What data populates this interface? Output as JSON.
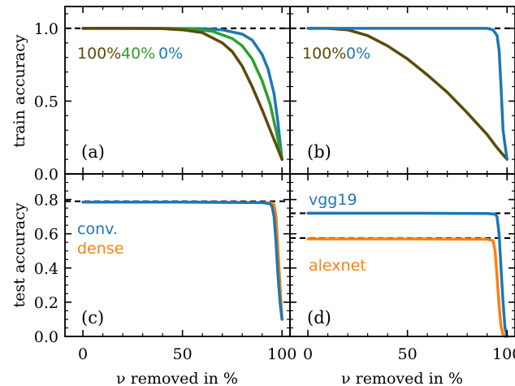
{
  "chart_data": [
    {
      "panel": "(a)",
      "type": "line",
      "ylabel": "train accuracy",
      "xlabel": "",
      "xlim": [
        -9,
        104
      ],
      "ylim": [
        0.0,
        1.15
      ],
      "yticks": [
        0.0,
        0.5,
        1.0
      ],
      "yticklabels": [
        "0.0",
        "0.5",
        "1.0"
      ],
      "reference_lines": [
        1.0
      ],
      "annotations": [
        {
          "text": "100%",
          "color": "#5c4a0a"
        },
        {
          "text": "40%",
          "color": "#2ca02c"
        },
        {
          "text": "0%",
          "color": "#1f77b4"
        }
      ],
      "series": [
        {
          "color": "#1f77b4",
          "x": [
            0,
            20,
            40,
            60,
            70,
            80,
            85,
            90,
            93,
            96,
            98,
            99,
            100
          ],
          "y": [
            1.0,
            1.0,
            1.0,
            0.998,
            0.99,
            0.96,
            0.92,
            0.82,
            0.72,
            0.55,
            0.35,
            0.22,
            0.1
          ]
        },
        {
          "color": "#2ca02c",
          "x": [
            0,
            20,
            40,
            55,
            65,
            75,
            80,
            85,
            90,
            94,
            97,
            100
          ],
          "y": [
            1.0,
            1.0,
            0.999,
            0.995,
            0.98,
            0.93,
            0.88,
            0.79,
            0.64,
            0.48,
            0.3,
            0.1
          ]
        },
        {
          "color": "#5c4a0a",
          "x": [
            0,
            20,
            40,
            50,
            60,
            70,
            75,
            80,
            85,
            90,
            95,
            100
          ],
          "y": [
            1.0,
            1.0,
            0.998,
            0.99,
            0.97,
            0.9,
            0.84,
            0.74,
            0.6,
            0.44,
            0.27,
            0.1
          ]
        }
      ]
    },
    {
      "panel": "(b)",
      "type": "line",
      "ylabel": "",
      "xlabel": "",
      "xlim": [
        -9,
        104
      ],
      "ylim": [
        0.0,
        1.15
      ],
      "reference_lines": [
        1.0
      ],
      "annotations": [
        {
          "text": "100%",
          "color": "#5c4a0a"
        },
        {
          "text": "0%",
          "color": "#1f77b4"
        }
      ],
      "series": [
        {
          "color": "#5c4a0a",
          "x": [
            0,
            10,
            20,
            30,
            40,
            50,
            60,
            70,
            80,
            90,
            95,
            100
          ],
          "y": [
            1.0,
            1.0,
            0.99,
            0.95,
            0.88,
            0.79,
            0.68,
            0.56,
            0.42,
            0.27,
            0.18,
            0.1
          ]
        },
        {
          "color": "#1f77b4",
          "x": [
            0,
            50,
            90,
            93,
            95,
            96,
            97,
            98,
            99,
            100
          ],
          "y": [
            1.0,
            1.0,
            1.0,
            0.99,
            0.95,
            0.85,
            0.6,
            0.3,
            0.2,
            0.1
          ]
        }
      ]
    },
    {
      "panel": "(c)",
      "type": "line",
      "ylabel": "test accuracy",
      "xlabel": "ν removed in %",
      "xlim": [
        -9,
        104
      ],
      "ylim": [
        0.0,
        0.95
      ],
      "xticks": [
        0,
        50,
        100
      ],
      "xticklabels": [
        "0",
        "50",
        "100"
      ],
      "yticks": [
        0.0,
        0.2,
        0.4,
        0.6,
        0.8
      ],
      "yticklabels": [
        "0.0",
        "0.2",
        "0.4",
        "0.6",
        "0.8"
      ],
      "reference_lines": [
        0.79
      ],
      "annotations": [
        {
          "text": "conv.",
          "color": "#1f77b4"
        },
        {
          "text": "dense",
          "color": "#ff7f0e"
        }
      ],
      "series": [
        {
          "color": "#ff7f0e",
          "x": [
            0,
            50,
            90,
            95,
            96,
            97,
            98,
            99,
            100
          ],
          "y": [
            0.785,
            0.785,
            0.783,
            0.78,
            0.77,
            0.7,
            0.5,
            0.3,
            0.1
          ]
        },
        {
          "color": "#1f77b4",
          "x": [
            0,
            50,
            90,
            94,
            95,
            96,
            97,
            98,
            99,
            100
          ],
          "y": [
            0.785,
            0.785,
            0.782,
            0.775,
            0.76,
            0.7,
            0.55,
            0.35,
            0.2,
            0.1
          ]
        }
      ]
    },
    {
      "panel": "(d)",
      "type": "line",
      "ylabel": "",
      "xlabel": "ν removed in %",
      "xlim": [
        -9,
        104
      ],
      "ylim": [
        0.0,
        0.95
      ],
      "xticks": [
        0,
        50,
        100
      ],
      "xticklabels": [
        "0",
        "50",
        "100"
      ],
      "reference_lines": [
        0.72,
        0.575
      ],
      "annotations": [
        {
          "text": "vgg19",
          "color": "#1f77b4"
        },
        {
          "text": "alexnet",
          "color": "#ff7f0e"
        }
      ],
      "series": [
        {
          "color": "#1f77b4",
          "x": [
            0,
            50,
            90,
            94,
            95,
            96,
            97,
            98,
            99,
            100
          ],
          "y": [
            0.72,
            0.72,
            0.718,
            0.715,
            0.7,
            0.6,
            0.4,
            0.2,
            0.05,
            0.0
          ]
        },
        {
          "color": "#ff7f0e",
          "x": [
            0,
            50,
            90,
            93,
            94,
            95,
            96,
            97,
            98,
            99
          ],
          "y": [
            0.57,
            0.57,
            0.568,
            0.56,
            0.5,
            0.35,
            0.18,
            0.06,
            0.01,
            0.0
          ]
        }
      ]
    }
  ]
}
